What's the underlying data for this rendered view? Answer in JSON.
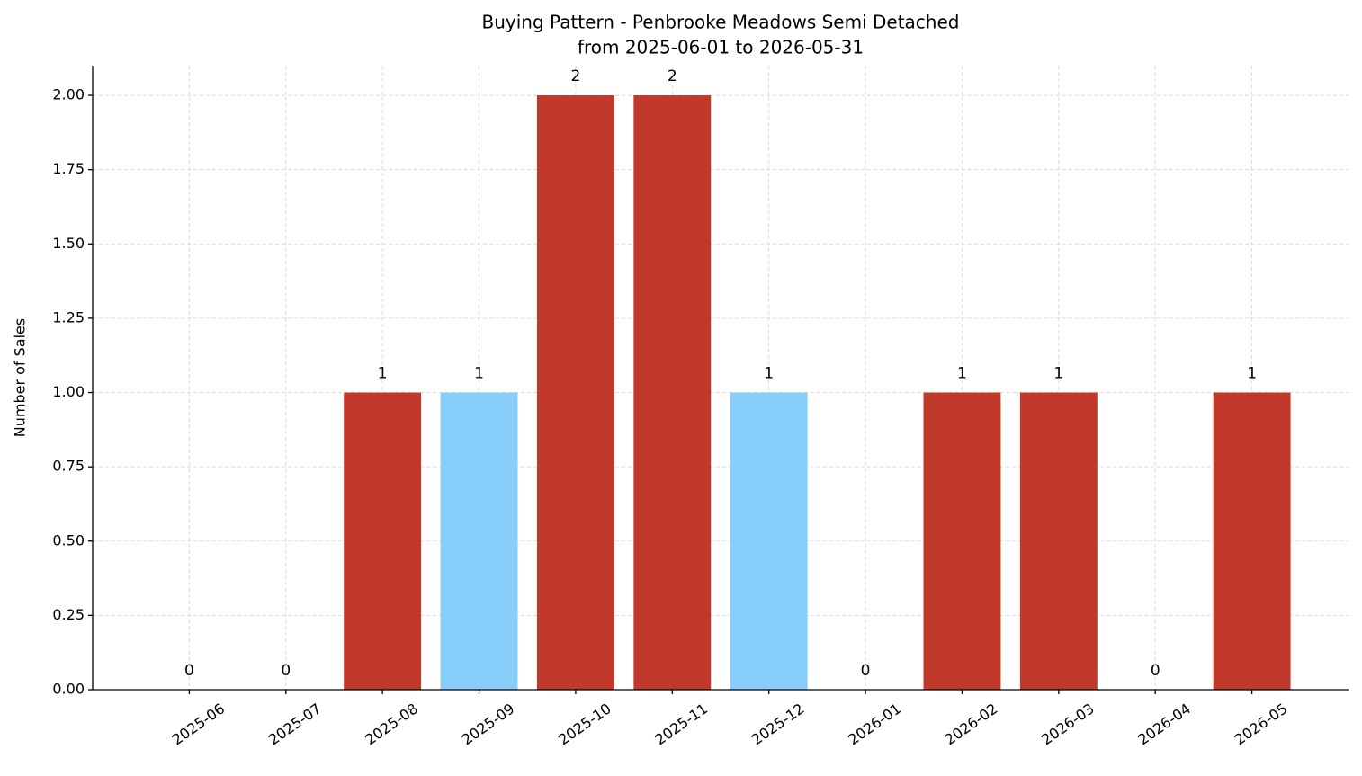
{
  "chart_data": {
    "type": "bar",
    "title": "Buying Pattern - Penbrooke Meadows Semi Detached",
    "subtitle": "from 2025-06-01 to 2026-05-31",
    "y_label": "Number of Sales",
    "categories": [
      "2025-06",
      "2025-07",
      "2025-08",
      "2025-09",
      "2025-10",
      "2025-11",
      "2025-12",
      "2026-01",
      "2026-02",
      "2026-03",
      "2026-04",
      "2026-05"
    ],
    "values": [
      0,
      0,
      1,
      1,
      2,
      2,
      1,
      0,
      1,
      1,
      0,
      1
    ],
    "colors": [
      null,
      null,
      "#c0392b",
      "#87cefa",
      "#c0392b",
      "#c0392b",
      "#87cefa",
      null,
      "#c0392b",
      "#c0392b",
      null,
      "#c0392b"
    ],
    "ylim": [
      0,
      2.1
    ],
    "yticks": [
      {
        "value": 0,
        "label": "0.00"
      },
      {
        "value": 0.25,
        "label": "0.25"
      },
      {
        "value": 0.5,
        "label": "0.50"
      },
      {
        "value": 0.75,
        "label": "0.75"
      },
      {
        "value": 1,
        "label": "1.00"
      },
      {
        "value": 1.25,
        "label": "1.25"
      },
      {
        "value": 1.5,
        "label": "1.50"
      },
      {
        "value": 1.75,
        "label": "1.75"
      },
      {
        "value": 2,
        "label": "2.00"
      }
    ],
    "grid": true
  }
}
